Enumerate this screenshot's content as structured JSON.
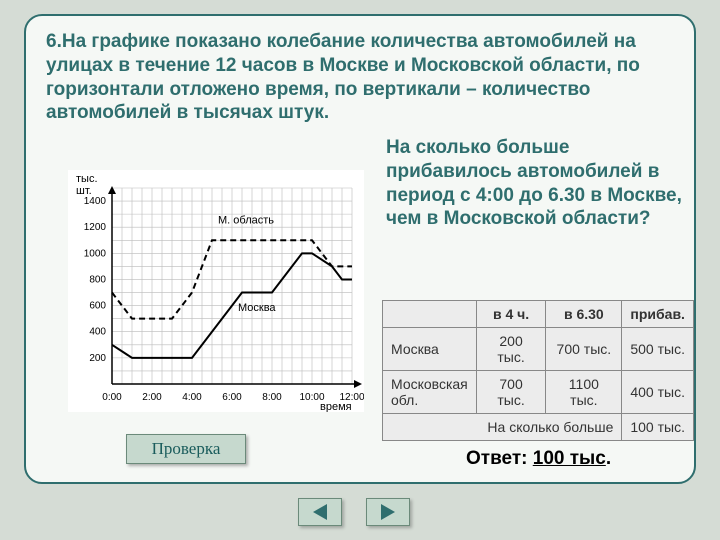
{
  "problem": "6.На графике показано колебание количества автомобилей на улицах в течение 12 часов в Москве и Московской области, по горизонтали отложено время, по вертикали – количество автомобилей в тысячах штук.",
  "question": "На сколько больше прибавилось автомобилей в период с 4:00 до 6.30 в Москве, чем в Московской области?",
  "check_label": "Проверка",
  "answer_label": "Ответ:",
  "answer_value": "100 тыс",
  "answer_dot": ".",
  "table": {
    "headers": [
      "",
      "в 4 ч.",
      "в 6.30",
      "прибав."
    ],
    "rows": [
      [
        "Москва",
        "200 тыс.",
        "700 тыс.",
        "500 тыс."
      ],
      [
        "Московская обл.",
        "700 тыс.",
        "1100 тыс.",
        "400 тыс."
      ]
    ],
    "footer_label": "На сколько больше",
    "footer_value": "100 тыс."
  },
  "chart": {
    "type": "line",
    "y_label": "тыс. шт.",
    "x_label": "время",
    "series1_label": "М. область",
    "series2_label": "Москва",
    "ylim": [
      0,
      1500
    ],
    "ytick_step": 200,
    "x_ticks": [
      "0:00",
      "2:00",
      "4:00",
      "6:00",
      "8:00",
      "10:00",
      "12:00"
    ],
    "x_minor_per_major": 4,
    "grid_color": "#bbbbbb",
    "axis_color": "#000000",
    "background_color": "#ffffff",
    "text_color": "#000000",
    "tick_fontsize": 10,
    "label_fontsize": 11,
    "series": [
      {
        "name": "М. область",
        "color": "#000000",
        "dash": "6,4",
        "width": 2,
        "points": [
          [
            0.0,
            700
          ],
          [
            1.0,
            500
          ],
          [
            2.0,
            500
          ],
          [
            3.0,
            500
          ],
          [
            4.0,
            700
          ],
          [
            4.5,
            900
          ],
          [
            5.0,
            1100
          ],
          [
            6.0,
            1100
          ],
          [
            7.0,
            1100
          ],
          [
            8.0,
            1100
          ],
          [
            9.0,
            1100
          ],
          [
            10.0,
            1100
          ],
          [
            10.5,
            1000
          ],
          [
            11.0,
            900
          ],
          [
            12.0,
            900
          ]
        ]
      },
      {
        "name": "Москва",
        "color": "#000000",
        "dash": "",
        "width": 2,
        "points": [
          [
            0.0,
            300
          ],
          [
            1.0,
            200
          ],
          [
            2.0,
            200
          ],
          [
            3.0,
            200
          ],
          [
            4.0,
            200
          ],
          [
            5.0,
            400
          ],
          [
            6.0,
            600
          ],
          [
            6.5,
            700
          ],
          [
            7.0,
            700
          ],
          [
            8.0,
            700
          ],
          [
            9.0,
            900
          ],
          [
            9.5,
            1000
          ],
          [
            10.0,
            1000
          ],
          [
            11.0,
            900
          ],
          [
            11.5,
            800
          ],
          [
            12.0,
            800
          ]
        ]
      }
    ]
  }
}
